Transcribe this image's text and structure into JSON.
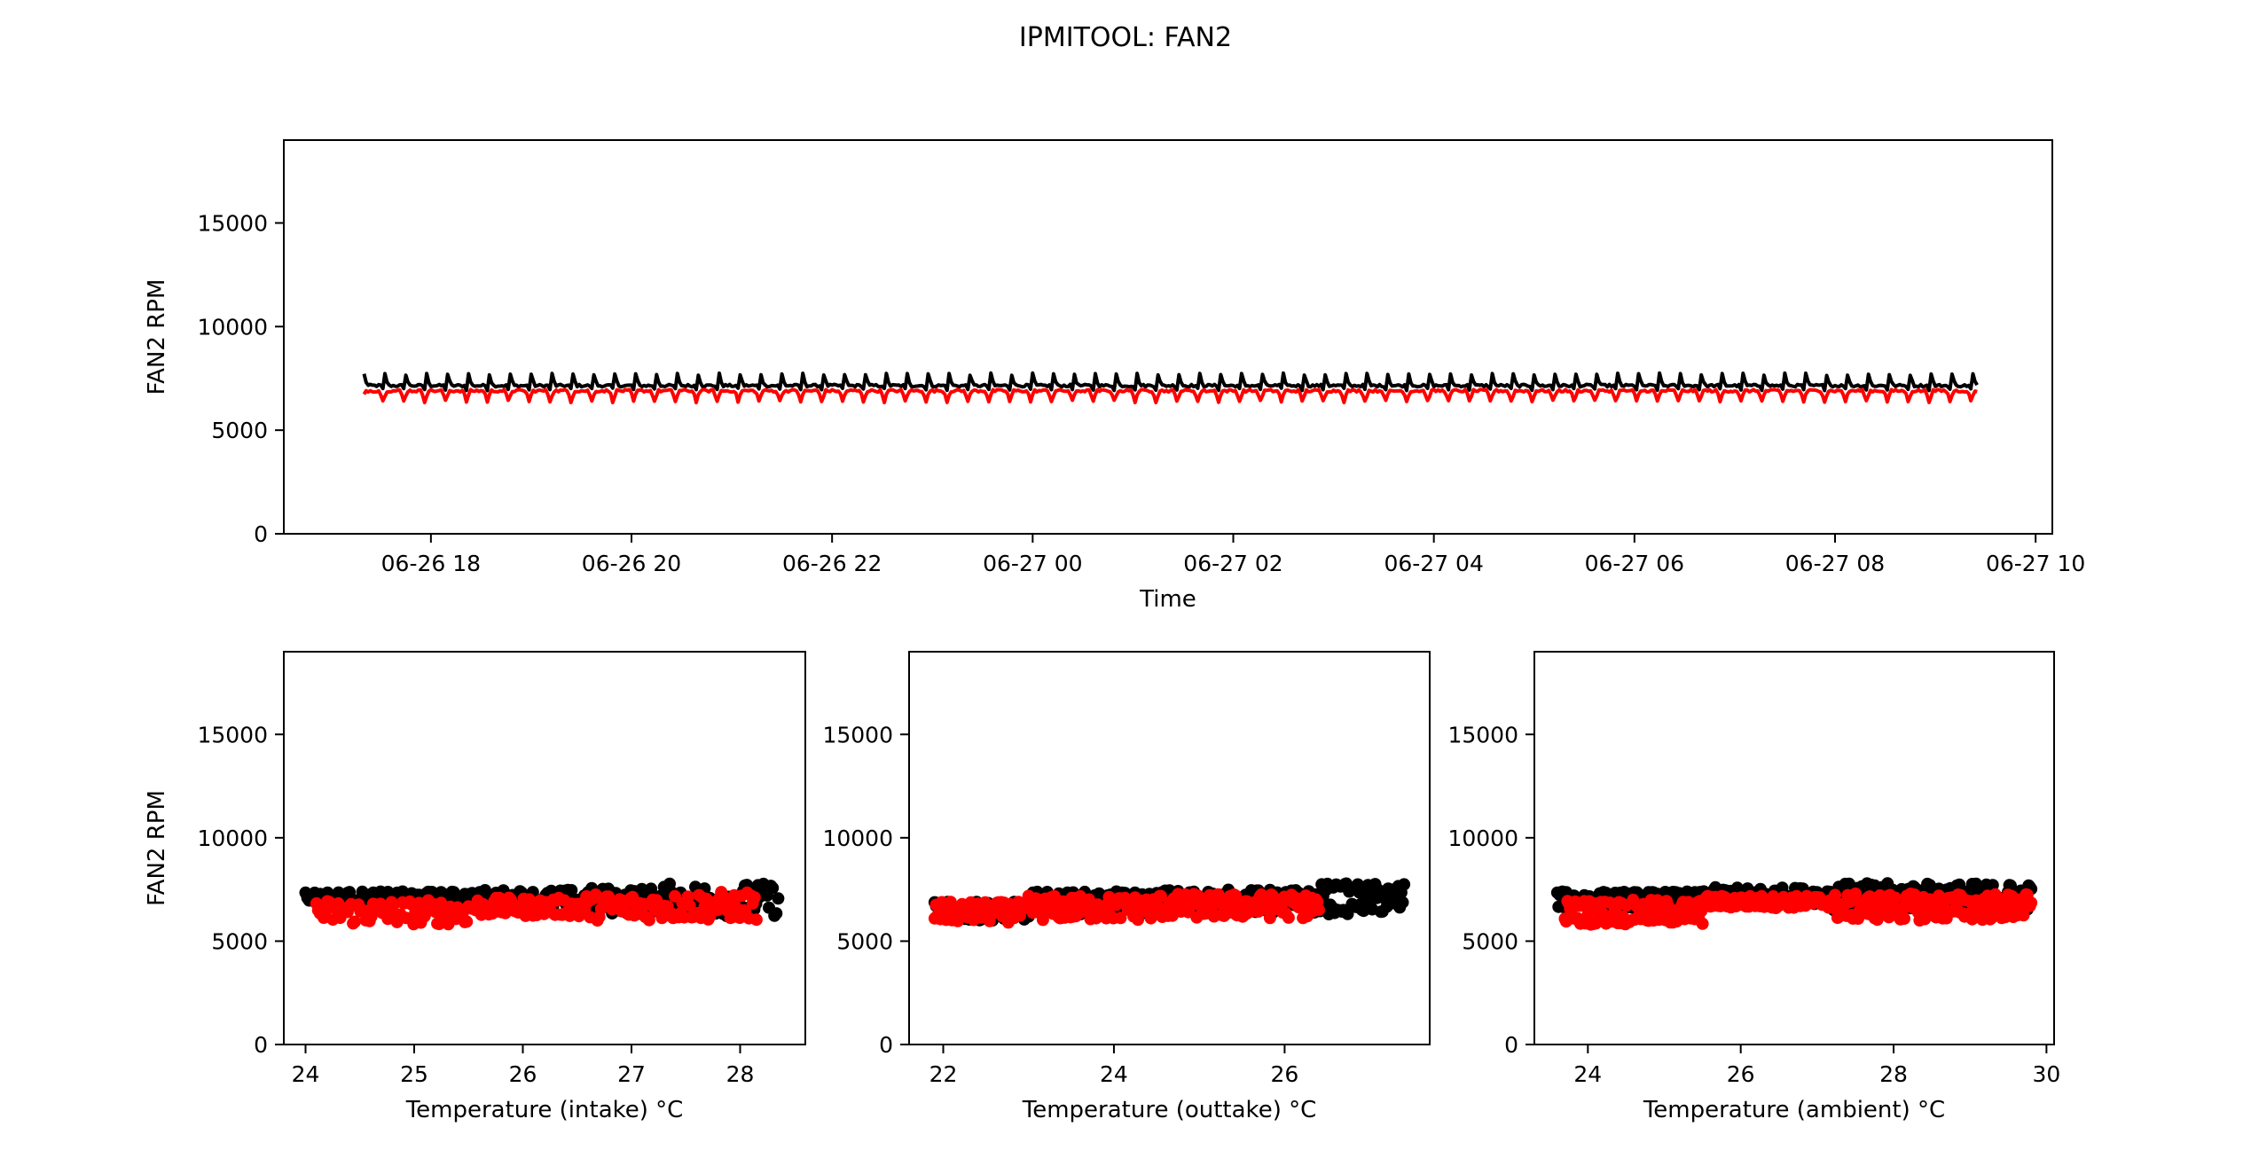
{
  "figure": {
    "title": "IPMITOOL: FAN2"
  },
  "chart_data": [
    {
      "id": "timeseries",
      "type": "line",
      "xlabel": "Time",
      "ylabel": "FAN2 RPM",
      "x_range": [
        "2024-06-26T16:32",
        "2024-06-27T10:10"
      ],
      "ylim": [
        0,
        19000
      ],
      "x_ticks": [
        "06-26 18",
        "06-26 20",
        "06-26 22",
        "06-27 00",
        "06-27 02",
        "06-27 04",
        "06-27 06",
        "06-27 08",
        "06-27 10"
      ],
      "x_tick_times": [
        "2024-06-26T18:00",
        "2024-06-26T20:00",
        "2024-06-26T22:00",
        "2024-06-27T00:00",
        "2024-06-27T02:00",
        "2024-06-27T04:00",
        "2024-06-27T06:00",
        "2024-06-27T08:00",
        "2024-06-27T10:00"
      ],
      "y_ticks": [
        0,
        5000,
        10000,
        15000
      ],
      "grid": false,
      "series": [
        {
          "color": "#000000",
          "x_start": "2024-06-26T17:20",
          "x_end": "2024-06-27T09:25",
          "baseline": 7150,
          "amplitude": 300,
          "peak": 7700,
          "period_minutes": 12.5
        },
        {
          "color": "#ff0000",
          "x_start": "2024-06-26T17:20",
          "x_end": "2024-06-27T09:25",
          "baseline": 6900,
          "amplitude": 700,
          "trough": 6050,
          "period_minutes": 12.5
        }
      ]
    },
    {
      "id": "intake",
      "type": "scatter",
      "xlabel": "Temperature (intake) °C",
      "ylabel": "FAN2 RPM",
      "xlim": [
        23.8,
        28.6
      ],
      "ylim": [
        0,
        19000
      ],
      "x_ticks": [
        24,
        25,
        26,
        27,
        28
      ],
      "y_ticks": [
        0,
        5000,
        10000,
        15000
      ],
      "grid": false,
      "series": [
        {
          "color": "#000000",
          "segments": [
            {
              "x0": 24.0,
              "x1": 25.5,
              "ymin": 6900,
              "ymax": 7400
            },
            {
              "x0": 25.5,
              "x1": 26.6,
              "ymin": 6500,
              "ymax": 7500
            },
            {
              "x0": 26.6,
              "x1": 27.3,
              "ymin": 6300,
              "ymax": 7600
            },
            {
              "x0": 27.3,
              "x1": 28.35,
              "ymin": 6200,
              "ymax": 7800
            }
          ]
        },
        {
          "color": "#ff0000",
          "segments": [
            {
              "x0": 24.1,
              "x1": 25.5,
              "ymin": 5800,
              "ymax": 7000
            },
            {
              "x0": 25.5,
              "x1": 26.5,
              "ymin": 6200,
              "ymax": 7100
            },
            {
              "x0": 26.5,
              "x1": 27.4,
              "ymin": 6000,
              "ymax": 7300
            },
            {
              "x0": 27.4,
              "x1": 28.15,
              "ymin": 6000,
              "ymax": 7400
            }
          ]
        }
      ]
    },
    {
      "id": "outtake",
      "type": "scatter",
      "xlabel": "Temperature (outtake) °C",
      "ylabel": "",
      "xlim": [
        21.6,
        27.7
      ],
      "ylim": [
        0,
        19000
      ],
      "x_ticks": [
        22,
        24,
        26
      ],
      "y_ticks": [
        0,
        5000,
        10000,
        15000
      ],
      "grid": false,
      "series": [
        {
          "color": "#000000",
          "segments": [
            {
              "x0": 21.9,
              "x1": 23.0,
              "ymin": 6000,
              "ymax": 6900
            },
            {
              "x0": 23.0,
              "x1": 24.5,
              "ymin": 6300,
              "ymax": 7400
            },
            {
              "x0": 24.5,
              "x1": 26.4,
              "ymin": 6300,
              "ymax": 7500
            },
            {
              "x0": 26.4,
              "x1": 27.4,
              "ymin": 6300,
              "ymax": 7800
            }
          ]
        },
        {
          "color": "#ff0000",
          "segments": [
            {
              "x0": 21.9,
              "x1": 23.0,
              "ymin": 5900,
              "ymax": 6900
            },
            {
              "x0": 23.0,
              "x1": 24.5,
              "ymin": 6000,
              "ymax": 7200
            },
            {
              "x0": 24.5,
              "x1": 26.4,
              "ymin": 6100,
              "ymax": 7300
            }
          ]
        }
      ]
    },
    {
      "id": "ambient",
      "type": "scatter",
      "xlabel": "Temperature (ambient) °C",
      "ylabel": "",
      "xlim": [
        23.3,
        30.1
      ],
      "ylim": [
        0,
        19000
      ],
      "x_ticks": [
        24,
        26,
        28,
        30
      ],
      "y_ticks": [
        0,
        5000,
        10000,
        15000
      ],
      "grid": false,
      "series": [
        {
          "color": "#000000",
          "segments": [
            {
              "x0": 23.6,
              "x1": 25.5,
              "ymin": 6600,
              "ymax": 7400
            },
            {
              "x0": 25.5,
              "x1": 27.2,
              "ymin": 6800,
              "ymax": 7600
            },
            {
              "x0": 27.2,
              "x1": 29.8,
              "ymin": 6500,
              "ymax": 7800
            }
          ]
        },
        {
          "color": "#ff0000",
          "segments": [
            {
              "x0": 23.7,
              "x1": 25.5,
              "ymin": 5800,
              "ymax": 7000
            },
            {
              "x0": 25.5,
              "x1": 27.2,
              "ymin": 6600,
              "ymax": 7200
            },
            {
              "x0": 27.2,
              "x1": 29.8,
              "ymin": 6000,
              "ymax": 7300
            }
          ]
        }
      ]
    }
  ]
}
